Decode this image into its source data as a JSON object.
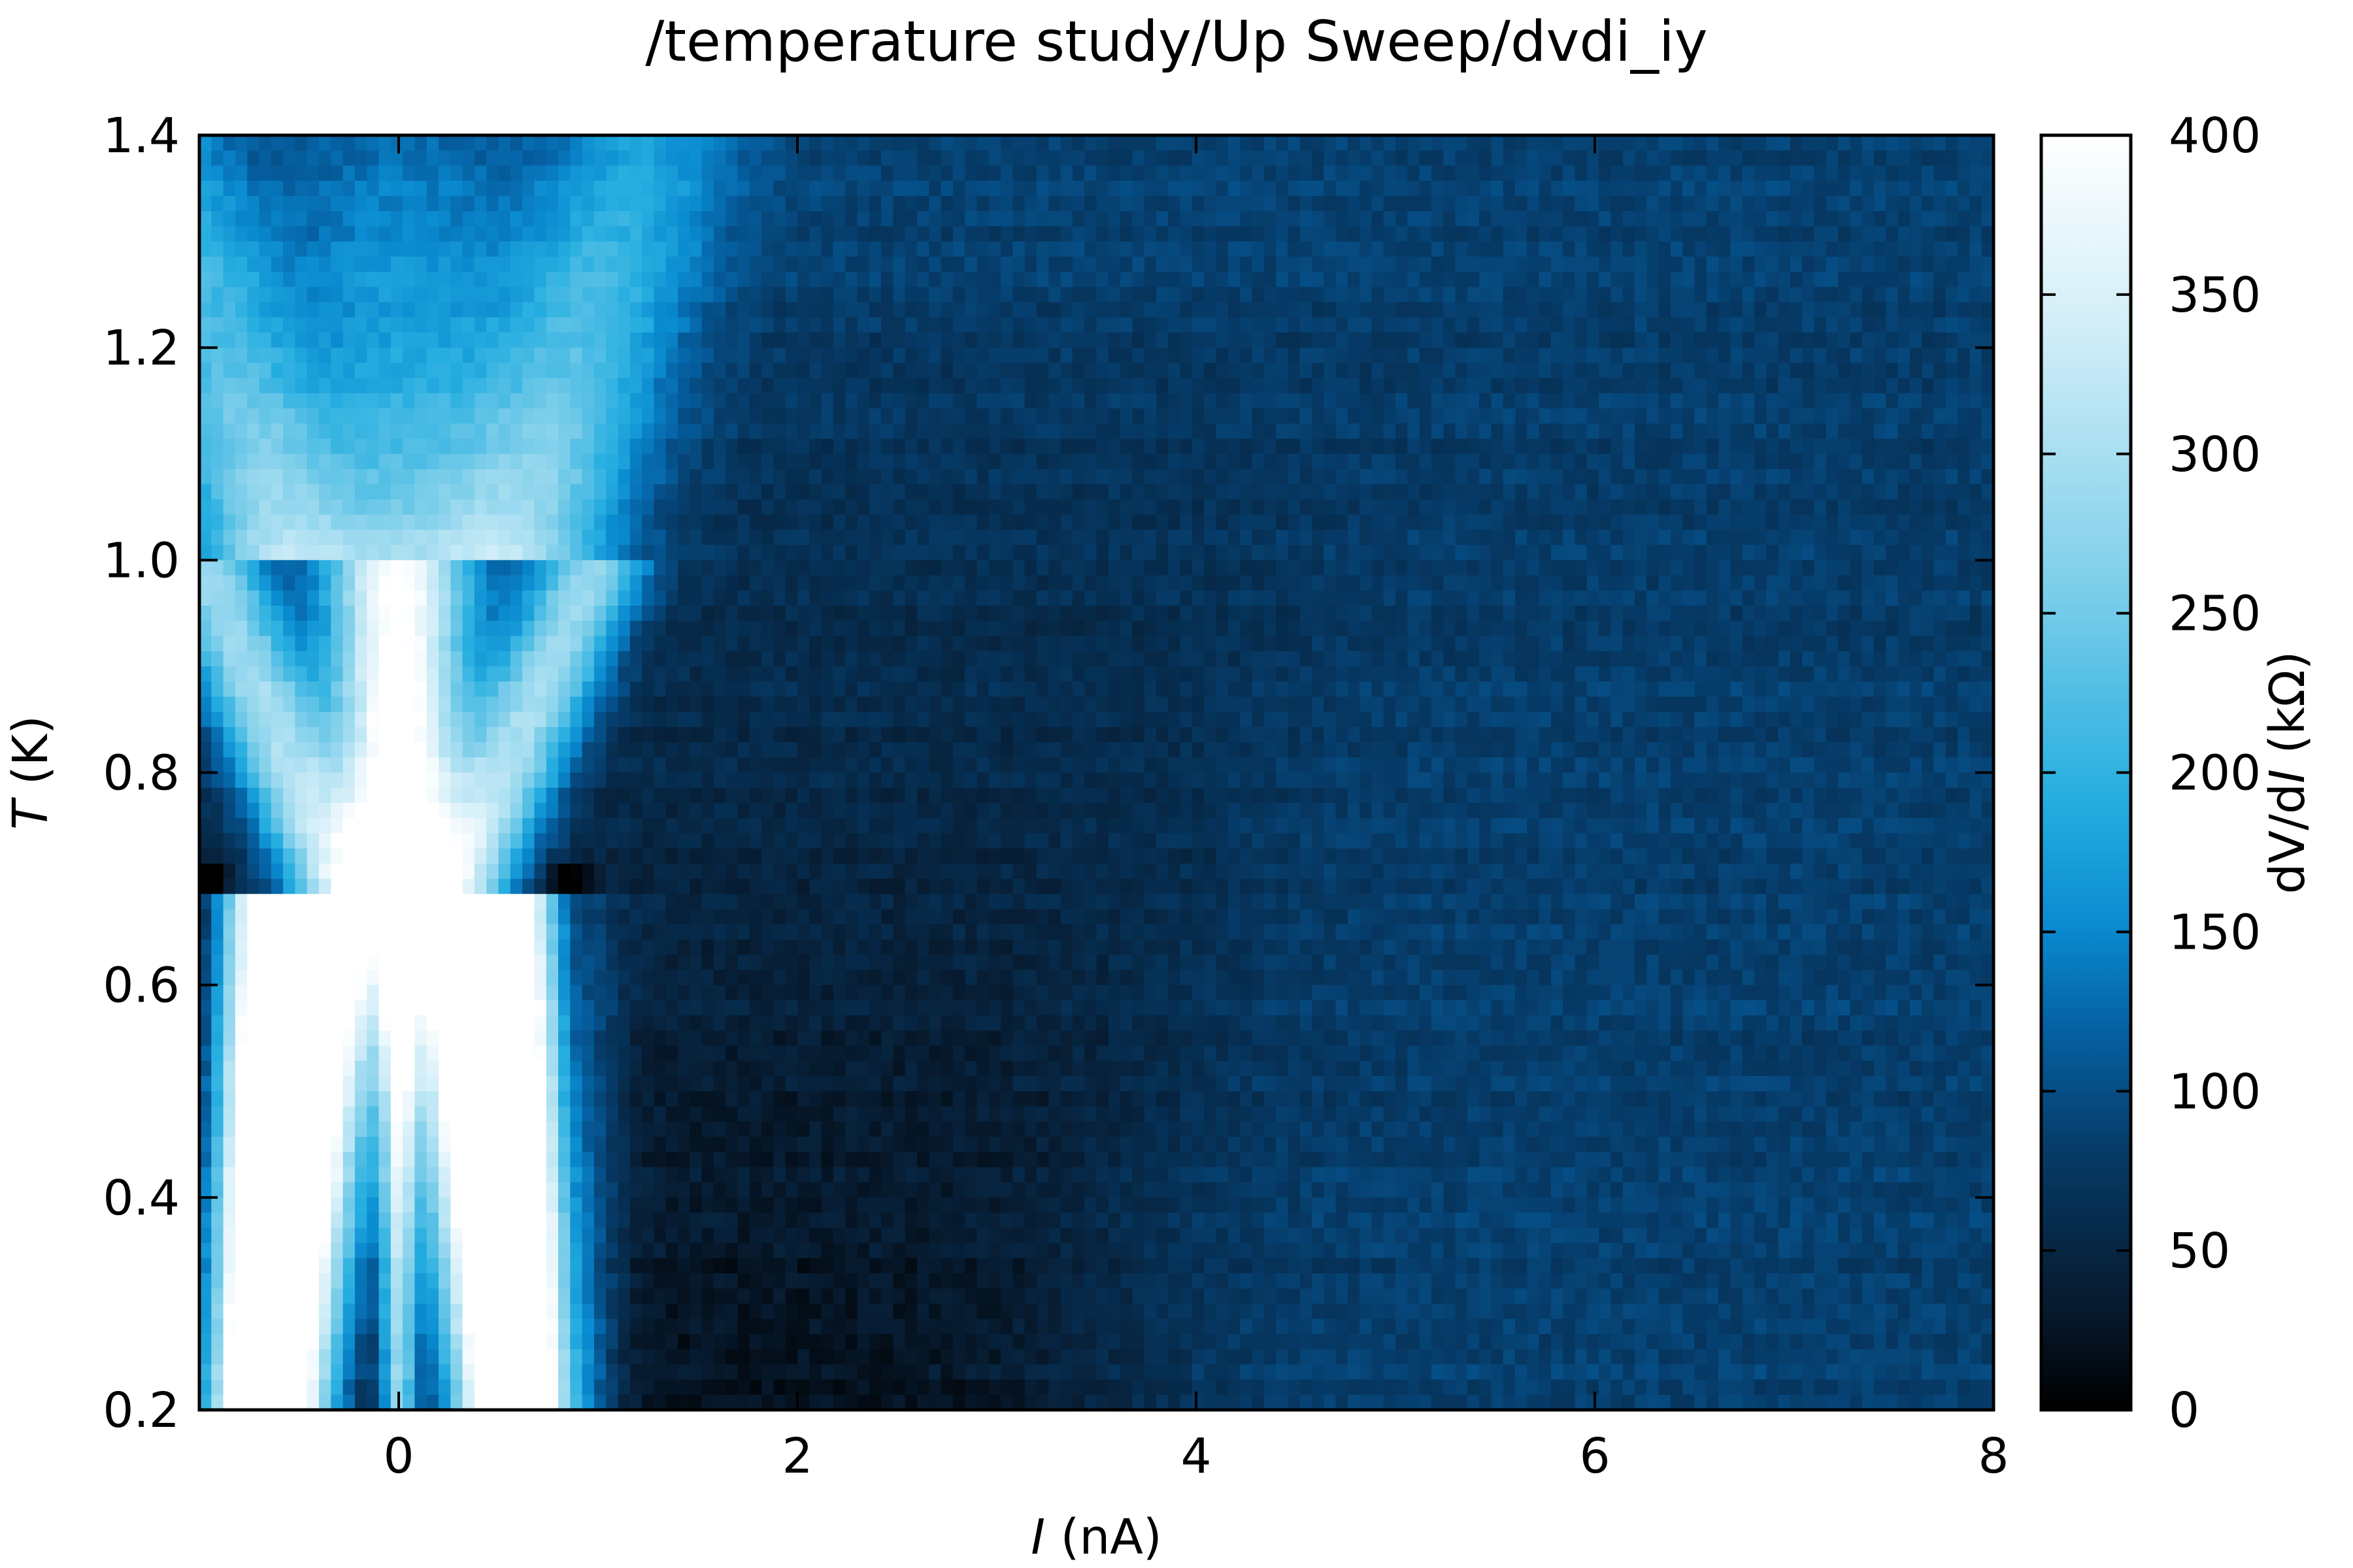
{
  "chart_data": {
    "type": "heatmap",
    "title": "/temperature study/Up Sweep/dvdi_iy",
    "xlabel": {
      "symbol": "I",
      "rest": " (nA)"
    },
    "ylabel": {
      "symbol": "T",
      "rest": " (K)"
    },
    "colorbar_label": {
      "prefix": "dV/d",
      "symbol": "I",
      "rest": " (kΩ)"
    },
    "xlim": [
      -1.0,
      8.0
    ],
    "ylim": [
      0.2,
      1.4
    ],
    "clim": [
      0,
      400
    ],
    "x_ticks": [
      0,
      2,
      4,
      6,
      8
    ],
    "x_tick_labels": [
      "0",
      "2",
      "4",
      "6",
      "8"
    ],
    "y_ticks": [
      0.2,
      0.4,
      0.6,
      0.8,
      1.0,
      1.2,
      1.4
    ],
    "y_tick_labels": [
      "0.2",
      "0.4",
      "0.6",
      "0.8",
      "1.0",
      "1.2",
      "1.4"
    ],
    "colorbar_ticks": [
      0,
      50,
      100,
      150,
      200,
      250,
      300,
      350,
      400
    ],
    "colorbar_tick_labels": [
      "0",
      "50",
      "100",
      "150",
      "200",
      "250",
      "300",
      "350",
      "400"
    ],
    "colormap": [
      [
        0.0,
        "#000000"
      ],
      [
        0.08,
        "#071a2e"
      ],
      [
        0.2,
        "#063a66"
      ],
      [
        0.3,
        "#0561a3"
      ],
      [
        0.38,
        "#0a8bd0"
      ],
      [
        0.48,
        "#26aee0"
      ],
      [
        0.65,
        "#7fcfea"
      ],
      [
        0.85,
        "#d2eef8"
      ],
      [
        1.0,
        "#ffffff"
      ]
    ],
    "features": {
      "background_high_T": 105,
      "background_large_I": 85,
      "dark_region_min": 20,
      "peak_max": 400,
      "zero_bias_peak_I": 0.0,
      "side_peak_I_low_T": 0.55,
      "side_peak_merge_T": 0.95
    }
  }
}
